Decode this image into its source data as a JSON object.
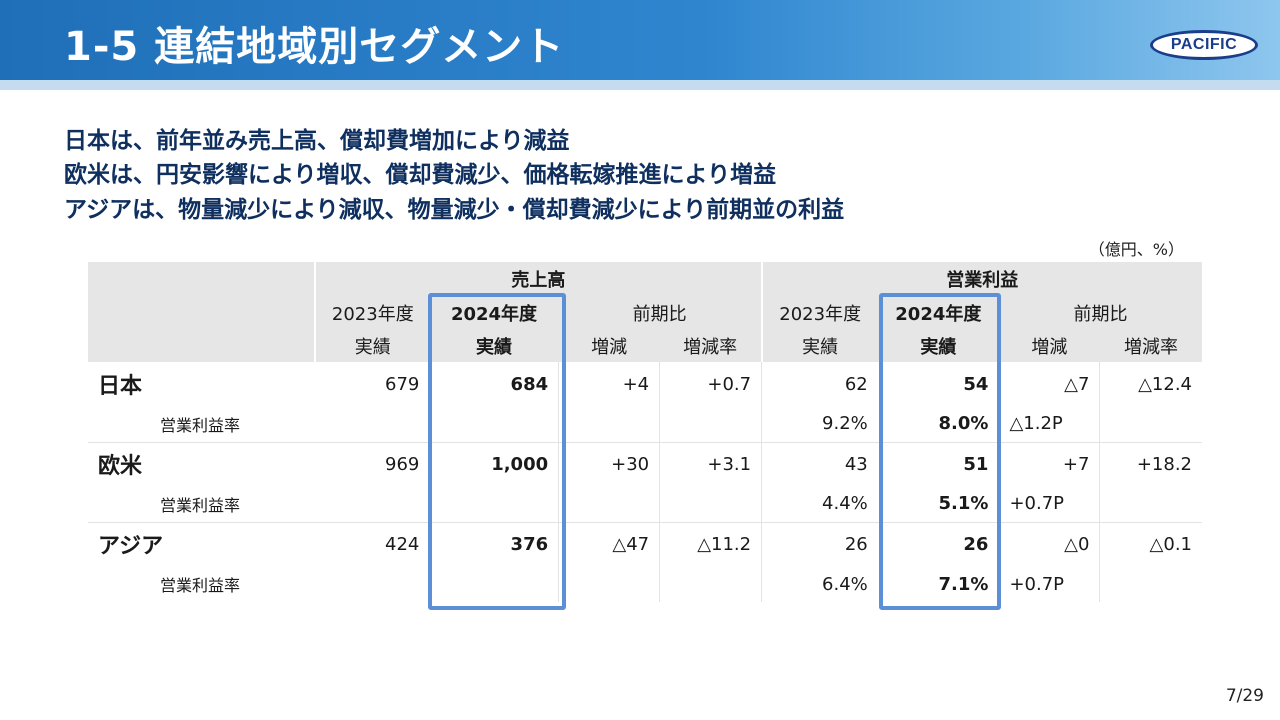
{
  "header": {
    "title": "1-5 連結地域別セグメント",
    "logo_text": "PACIFIC"
  },
  "headlines": [
    "日本は、前年並み売上高、償却費増加により減益",
    "欧米は、円安影響により増収、償却費減少、価格転嫁推進により増益",
    "アジアは、物量減少により減収、物量減少・償却費減少により前期並の利益"
  ],
  "unit": "（億円、%）",
  "table": {
    "group_sales": "売上高",
    "group_profit": "営業利益",
    "col_2023": "2023年度",
    "col_2024": "2024年度",
    "col_yoy": "前期比",
    "sub_actual": "実績",
    "sub_change": "増減",
    "sub_rate": "増減率",
    "rows": [
      {
        "region": "日本",
        "sales_2023": "679",
        "sales_2024": "684",
        "sales_change": "+4",
        "sales_rate": "+0.7",
        "op_2023": "62",
        "op_2024": "54",
        "op_change": "△7",
        "op_rate": "△12.4",
        "margin_label": "営業利益率",
        "margin_2023": "9.2%",
        "margin_2024": "8.0%",
        "margin_change": "△1.2P"
      },
      {
        "region": "欧米",
        "sales_2023": "969",
        "sales_2024": "1,000",
        "sales_change": "+30",
        "sales_rate": "+3.1",
        "op_2023": "43",
        "op_2024": "51",
        "op_change": "+7",
        "op_rate": "+18.2",
        "margin_label": "営業利益率",
        "margin_2023": "4.4%",
        "margin_2024": "5.1%",
        "margin_change": "+0.7P"
      },
      {
        "region": "アジア",
        "sales_2023": "424",
        "sales_2024": "376",
        "sales_change": "△47",
        "sales_rate": "△11.2",
        "op_2023": "26",
        "op_2024": "26",
        "op_change": "△0",
        "op_rate": "△0.1",
        "margin_label": "営業利益率",
        "margin_2023": "6.4%",
        "margin_2024": "7.1%",
        "margin_change": "+0.7P"
      }
    ]
  },
  "page_number": "7/29"
}
